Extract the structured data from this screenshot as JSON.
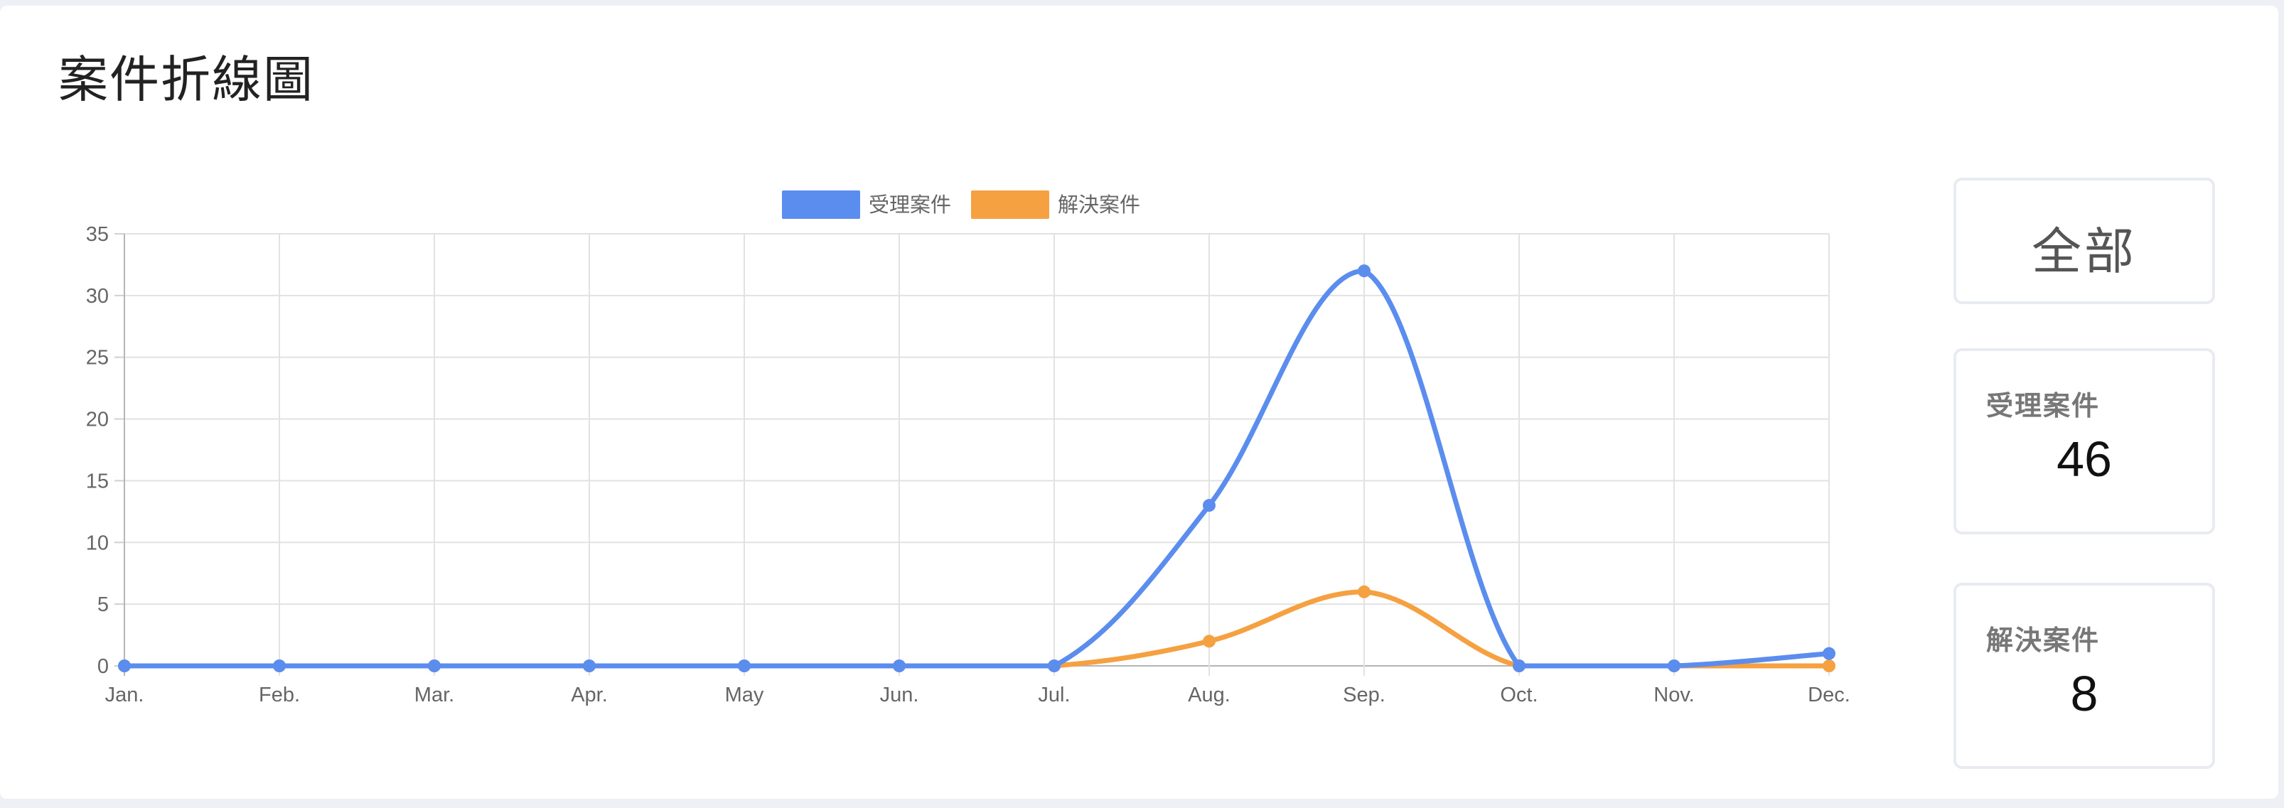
{
  "page": {
    "title": "案件折線圖"
  },
  "summary": {
    "all_label": "全部",
    "accepted_label": "受理案件",
    "accepted_value": "46",
    "resolved_label": "解決案件",
    "resolved_value": "8"
  },
  "chart_data": {
    "type": "line",
    "categories": [
      "Jan.",
      "Feb.",
      "Mar.",
      "Apr.",
      "May",
      "Jun.",
      "Jul.",
      "Aug.",
      "Sep.",
      "Oct.",
      "Nov.",
      "Dec."
    ],
    "series": [
      {
        "name": "受理案件",
        "color": "#5b8def",
        "values": [
          0,
          0,
          0,
          0,
          0,
          0,
          0,
          13,
          32,
          0,
          0,
          1
        ]
      },
      {
        "name": "解決案件",
        "color": "#f5a142",
        "values": [
          0,
          0,
          0,
          0,
          0,
          0,
          0,
          2,
          6,
          0,
          0,
          0
        ]
      }
    ],
    "ylim": [
      0,
      35
    ],
    "yticks": [
      0,
      5,
      10,
      15,
      20,
      25,
      30,
      35
    ],
    "grid": true,
    "legend": "top-center"
  }
}
